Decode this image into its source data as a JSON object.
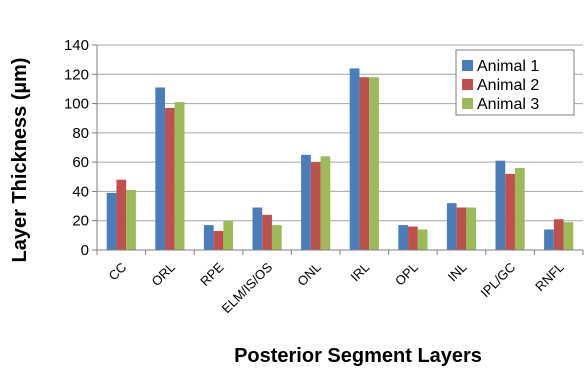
{
  "chart_data": {
    "type": "bar",
    "xlabel": "Posterior Segment Layers",
    "ylabel": "Layer Thickness (µm)",
    "ylim": [
      0,
      140
    ],
    "yticks": [
      0,
      20,
      40,
      60,
      80,
      100,
      120,
      140
    ],
    "grid": true,
    "legend_position": "top-right",
    "categories": [
      "CC",
      "ORL",
      "RPE",
      "ELM/IS/OS",
      "ONL",
      "IRL",
      "OPL",
      "INL",
      "IPL/GC",
      "RNFL"
    ],
    "series": [
      {
        "name": "Animal 1",
        "color": "#4a7ebb",
        "values": [
          39,
          111,
          17,
          29,
          65,
          124,
          17,
          32,
          61,
          14
        ]
      },
      {
        "name": "Animal 2",
        "color": "#c0504d",
        "values": [
          48,
          97,
          13,
          24,
          60,
          118,
          16,
          29,
          52,
          21
        ]
      },
      {
        "name": "Animal 3",
        "color": "#9bbb59",
        "values": [
          41,
          101,
          20,
          17,
          64,
          118,
          14,
          29,
          56,
          19
        ]
      }
    ]
  }
}
